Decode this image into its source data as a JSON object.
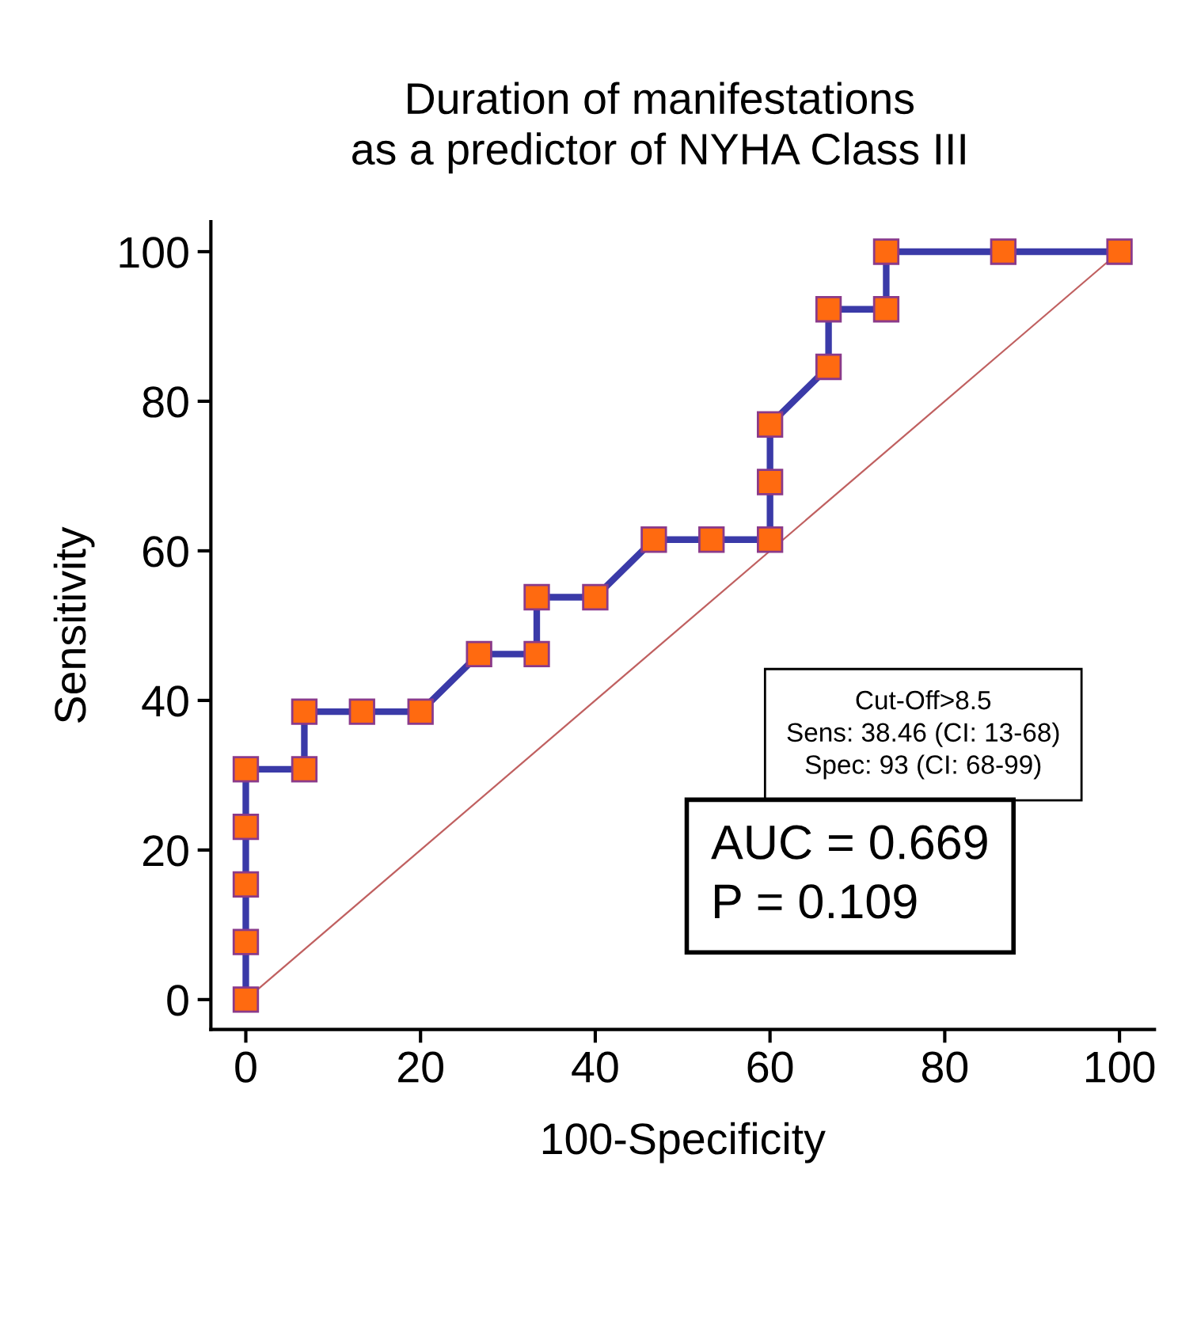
{
  "chart_data": {
    "type": "line",
    "title": "Duration of manifestations\nas a predictor of NYHA Class III",
    "xlabel": "100-Specificity",
    "ylabel": "Sensitivity",
    "series": [
      {
        "color": "#3a3aa8",
        "marker": "square",
        "line_style": "solid",
        "x": [
          0,
          0,
          0,
          0,
          0,
          6.7,
          6.7,
          13.3,
          20,
          26.7,
          33.3,
          33.3,
          40,
          46.7,
          53.3,
          60,
          60,
          60,
          66.7,
          66.7,
          73.3,
          73.3,
          86.7,
          100
        ],
        "values": [
          0,
          7.7,
          15.4,
          23.1,
          30.8,
          30.8,
          38.5,
          38.5,
          38.5,
          46.2,
          46.2,
          53.8,
          53.8,
          61.5,
          61.5,
          61.5,
          69.2,
          76.9,
          84.6,
          92.3,
          92.3,
          100,
          100,
          100
        ]
      },
      {
        "color": "#c06060",
        "marker": "none",
        "line_style": "solid",
        "x": [
          0,
          100
        ],
        "values": [
          0,
          100
        ]
      }
    ],
    "xlim": [
      -4,
      104
    ],
    "ylim": [
      -4,
      104
    ],
    "xticks": [
      0,
      20,
      40,
      60,
      80,
      100
    ],
    "yticks": [
      0,
      20,
      40,
      60,
      80,
      100
    ],
    "grid": false,
    "annotations": [
      "Cut-Off>8.5\nSens: 38.46 (CI: 13-68)\nSpec: 93 (CI: 68-99)",
      "AUC = 0.669\nP = 0.109"
    ]
  }
}
